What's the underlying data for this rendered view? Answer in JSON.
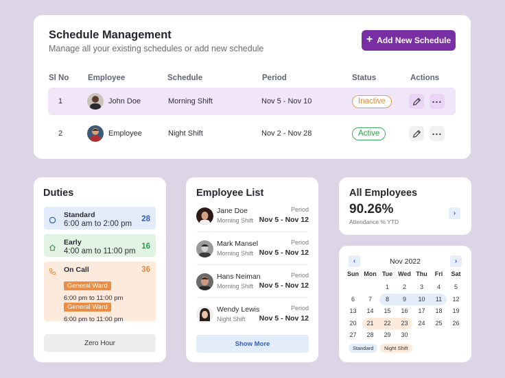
{
  "schedule": {
    "title": "Schedule Management",
    "subtitle": "Manage all your existing schedules or add new schedule",
    "add_button": "Add New Schedule",
    "columns": [
      "Sl No",
      "Employee",
      "Schedule",
      "Period",
      "Status",
      "Actions"
    ],
    "rows": [
      {
        "sl": "1",
        "employee": "John Doe",
        "schedule": "Morning Shift",
        "period": "Nov 5 - Nov 10",
        "status": "Inactive"
      },
      {
        "sl": "2",
        "employee": "Employee",
        "schedule": "Night Shift",
        "period": "Nov 2 - Nov 28",
        "status": "Active"
      }
    ]
  },
  "duties": {
    "title": "Duties",
    "items": [
      {
        "name": "Standard",
        "time": "6:00 am to 2:00 pm",
        "count": "28",
        "color": "#2f5cc5",
        "bg": "#e3ecfb",
        "icon": "clock-icon"
      },
      {
        "name": "Early",
        "time": "4:00 am to 11:00 pm",
        "count": "16",
        "color": "#2e9a4e",
        "bg": "#e2f3e4",
        "icon": "home-icon"
      },
      {
        "name": "On Call",
        "count": "36",
        "color": "#e4893a",
        "bg": "#fcebdc",
        "icon": "phone-icon",
        "entries": [
          {
            "tag": "General Ward",
            "time": "6:00 pm to 11:00 pm"
          },
          {
            "tag": "General Ward",
            "time": "6:00 pm to 11:00 pm"
          }
        ]
      }
    ],
    "zero_hour": "Zero Hour"
  },
  "employee_list": {
    "title": "Employee List",
    "period_label": "Period",
    "items": [
      {
        "name": "Jane Doe",
        "shift": "Morning Shift",
        "period": "Nov 5 - Nov 12"
      },
      {
        "name": "Mark Mansel",
        "shift": "Morning Shift",
        "period": "Nov 5 - Nov 12"
      },
      {
        "name": "Hans Neiman",
        "shift": "Morning Shift",
        "period": "Nov 5 - Nov 12"
      },
      {
        "name": "Wendy Lewis",
        "shift": "Night Shift",
        "period": "Nov 5 - Nov 12"
      }
    ],
    "show_more": "Show More"
  },
  "all_employees": {
    "title": "All Employees",
    "percent": "90.26%",
    "subtitle": "Attendance % YTD"
  },
  "calendar": {
    "month": "Nov 2022",
    "weekdays": [
      "Sun",
      "Mon",
      "Tue",
      "Wed",
      "Thu",
      "Fri",
      "Sat"
    ],
    "weeks": [
      [
        "",
        "",
        "1",
        "2",
        "3",
        "4",
        "5"
      ],
      [
        "6",
        "7",
        "8",
        "9",
        "10",
        "11",
        "12"
      ],
      [
        "13",
        "14",
        "15",
        "16",
        "17",
        "18",
        "19"
      ],
      [
        "20",
        "21",
        "22",
        "23",
        "24",
        "25",
        "26"
      ],
      [
        "27",
        "28",
        "29",
        "30",
        "",
        "",
        ""
      ]
    ],
    "legend": [
      "Standard",
      "Night Shift"
    ],
    "standard_color": "#e3ecfb",
    "night_shift_color": "#fcebdc"
  }
}
